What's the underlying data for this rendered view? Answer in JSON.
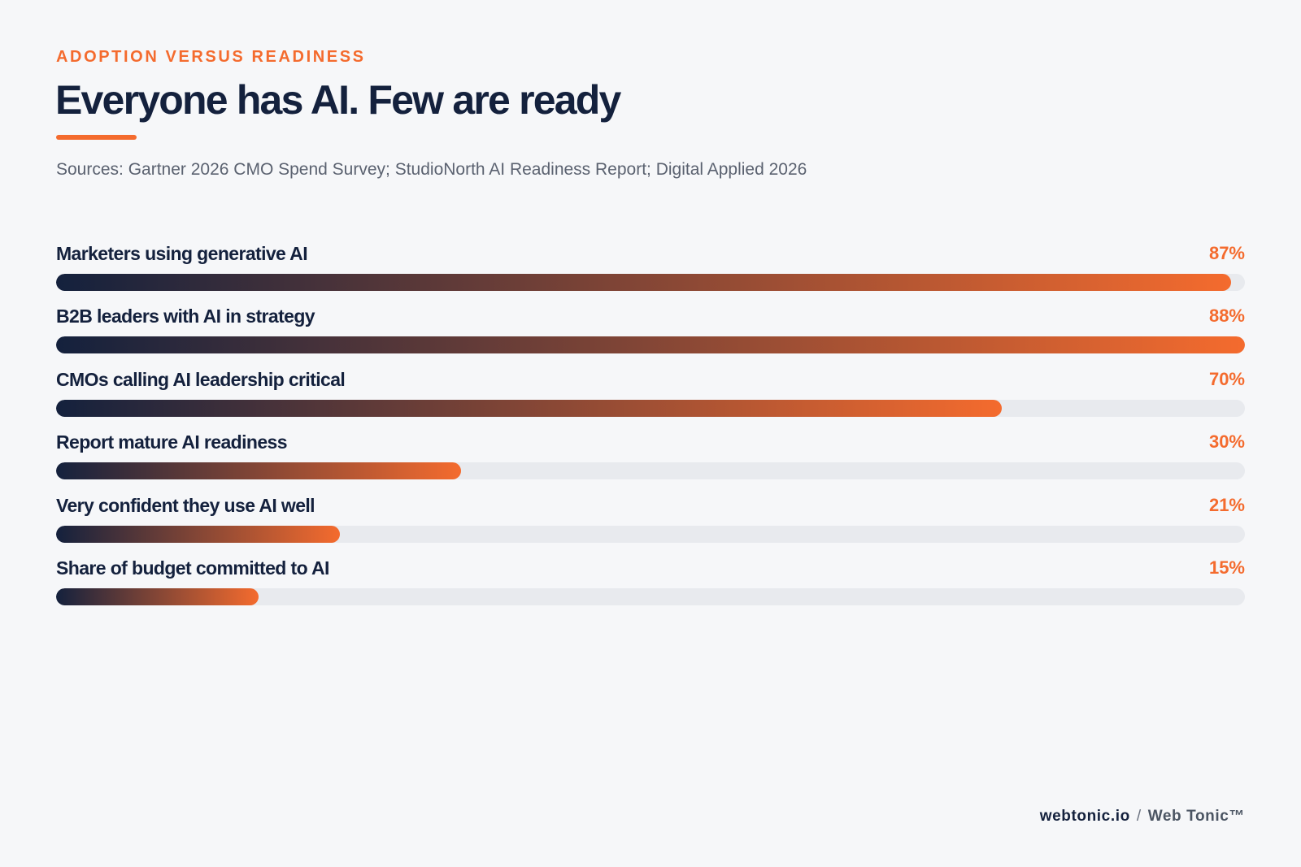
{
  "header": {
    "eyebrow": "ADOPTION VERSUS READINESS",
    "title": "Everyone has AI. Few are ready",
    "sources": "Sources: Gartner 2026 CMO Spend Survey; StudioNorth AI Readiness Report; Digital Applied 2026"
  },
  "chart_data": {
    "type": "bar",
    "orientation": "horizontal",
    "title": "Everyone has AI. Few are ready",
    "categories": [
      "Marketers using generative AI",
      "B2B leaders with AI in strategy",
      "CMOs calling AI leadership critical",
      "Report mature AI readiness",
      "Very confident they use AI well",
      "Share of budget committed to AI"
    ],
    "values": [
      87,
      88,
      70,
      30,
      21,
      15
    ],
    "value_labels": [
      "87%",
      "88%",
      "70%",
      "30%",
      "21%",
      "15%"
    ],
    "xlim": [
      0,
      88
    ],
    "unit": "%",
    "grid": false,
    "legend": "none",
    "colors": {
      "bar_start": "#14213d",
      "bar_end": "#f46b2e",
      "track": "#e8eaee",
      "value_text": "#f46b2e"
    }
  },
  "footer": {
    "site": "webtonic.io",
    "separator": "/",
    "brand": "Web Tonic™"
  }
}
